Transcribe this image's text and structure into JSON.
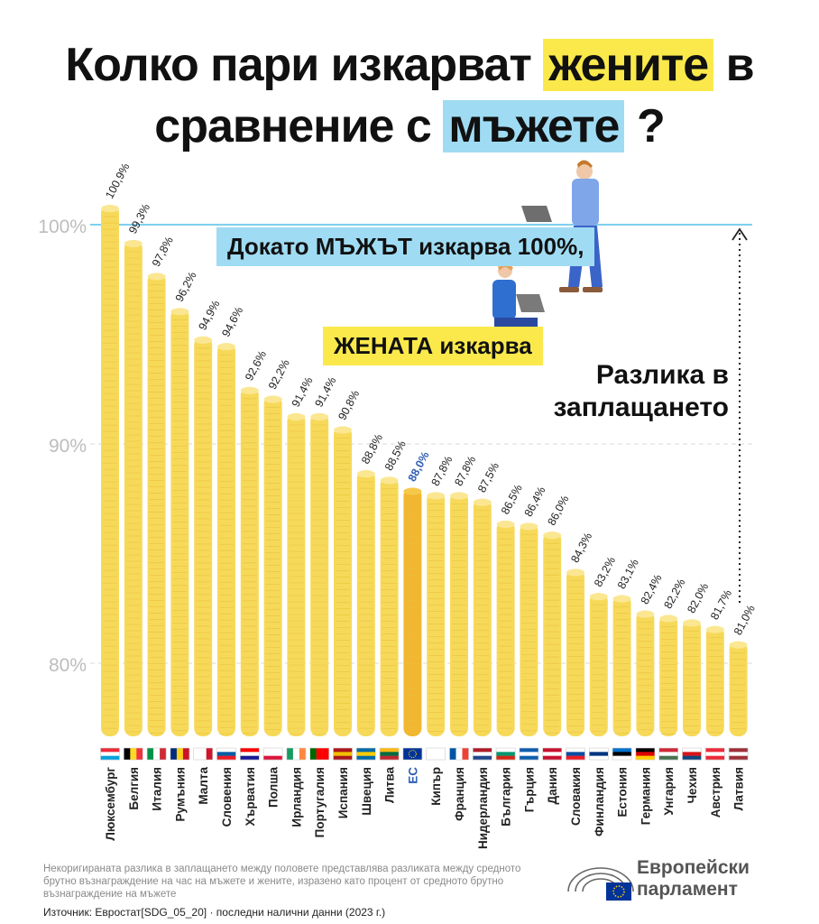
{
  "header": {
    "line1_start": "Колко пари изкарват",
    "line1_highlight": "жените",
    "line1_end": "в",
    "line2_start": "сравнение с",
    "line2_highlight": "мъжете",
    "line2_end": "?"
  },
  "banners": {
    "men": "Докато МЪЖЪТ изкарва 100%,",
    "women": "ЖЕНАТА изкарва",
    "gap_line1": "Разлика в",
    "gap_line2": "заплащането"
  },
  "footnote": "Некоригираната разлика в заплащането между половете представлява разликата между средното брутно възнаграждение на час на мъжете и жените, изразено като процент от средното брутно възнаграждение на мъжете",
  "source": "Източник: Евростат[SDG_05_20] · последни налични данни (2023 г.)",
  "logo": {
    "line1": "Европейски",
    "line2": "парламент"
  },
  "colors": {
    "coin": "#f7d95a",
    "coin_dark": "#e8c23c",
    "eu_coin": "#f2b630",
    "eu_label": "#2f5fb3",
    "men_banner": "#9fdcf3",
    "women_banner": "#fbe94b",
    "reference_line": "#7fd0ee"
  },
  "chart_data": {
    "type": "bar",
    "ylim": [
      76.5,
      101.5
    ],
    "yticks": [
      80,
      90,
      100
    ],
    "ytick_labels": [
      "80%",
      "90%",
      "100%"
    ],
    "reference_value": 100,
    "grid": true,
    "categories": [
      "Люксембург",
      "Белгия",
      "Италия",
      "Румъния",
      "Малта",
      "Словения",
      "Хърватия",
      "Полша",
      "Ирландия",
      "Португалия",
      "Испания",
      "Швеция",
      "Литва",
      "ЕС",
      "Кипър",
      "Франция",
      "Нидерландия",
      "България",
      "Гърция",
      "Дания",
      "Словакия",
      "Финландия",
      "Естония",
      "Германия",
      "Унгария",
      "Чехия",
      "Австрия",
      "Латвия"
    ],
    "values": [
      100.9,
      99.3,
      97.8,
      96.2,
      94.9,
      94.6,
      92.6,
      92.2,
      91.4,
      91.4,
      90.8,
      88.8,
      88.5,
      88.0,
      87.8,
      87.8,
      87.5,
      86.5,
      86.4,
      86.0,
      84.3,
      83.2,
      83.1,
      82.4,
      82.2,
      82.0,
      81.7,
      81.0
    ],
    "value_labels": [
      "100,9%",
      "99,3%",
      "97,8%",
      "96,2%",
      "94,9%",
      "94,6%",
      "92,6%",
      "92,2%",
      "91,4%",
      "91,4%",
      "90,8%",
      "88,8%",
      "88,5%",
      "88,0%",
      "87,8%",
      "87,8%",
      "87,5%",
      "86,5%",
      "86,4%",
      "86,0%",
      "84,3%",
      "83,2%",
      "83,1%",
      "82,4%",
      "82,2%",
      "82,0%",
      "81,7%",
      "81,0%"
    ],
    "highlight_category": "ЕС",
    "flags": [
      [
        "#ed2939",
        "#ffffff",
        "#00a1de"
      ],
      [
        "#000000",
        "#fdda24",
        "#ef3340"
      ],
      [
        "#009246",
        "#ffffff",
        "#ce2b37"
      ],
      [
        "#002b7f",
        "#fcd116",
        "#ce1126"
      ],
      [
        "#ffffff",
        "#ffffff",
        "#cf142b"
      ],
      [
        "#ffffff",
        "#005da4",
        "#ed1c24"
      ],
      [
        "#ff0000",
        "#ffffff",
        "#171796"
      ],
      [
        "#ffffff",
        "#ffffff",
        "#dc143c"
      ],
      [
        "#169b62",
        "#ffffff",
        "#ff883e"
      ],
      [
        "#006600",
        "#ff0000",
        "#ff0000"
      ],
      [
        "#aa151b",
        "#f1bf00",
        "#aa151b"
      ],
      [
        "#006aa7",
        "#fecc00",
        "#006aa7"
      ],
      [
        "#fdb913",
        "#006a44",
        "#c1272d"
      ],
      [
        "#003399",
        "#003399",
        "#003399"
      ],
      [
        "#ffffff",
        "#ffffff",
        "#ffffff"
      ],
      [
        "#0055a4",
        "#ffffff",
        "#ef4135"
      ],
      [
        "#ae1c28",
        "#ffffff",
        "#21468b"
      ],
      [
        "#ffffff",
        "#00966e",
        "#d62612"
      ],
      [
        "#0d5eaf",
        "#ffffff",
        "#0d5eaf"
      ],
      [
        "#c8102e",
        "#ffffff",
        "#c8102e"
      ],
      [
        "#ffffff",
        "#0b4ea2",
        "#ee1c25"
      ],
      [
        "#ffffff",
        "#003580",
        "#ffffff"
      ],
      [
        "#0072ce",
        "#000000",
        "#ffffff"
      ],
      [
        "#000000",
        "#dd0000",
        "#ffce00"
      ],
      [
        "#ce2939",
        "#ffffff",
        "#477050"
      ],
      [
        "#ffffff",
        "#d7141a",
        "#11457e"
      ],
      [
        "#ed2939",
        "#ffffff",
        "#ed2939"
      ],
      [
        "#9e3039",
        "#ffffff",
        "#9e3039"
      ]
    ]
  }
}
